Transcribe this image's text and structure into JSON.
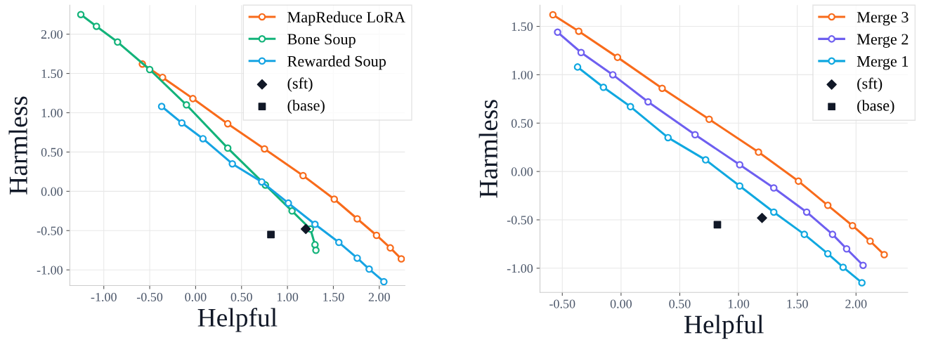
{
  "chart_data": [
    {
      "type": "line",
      "xlabel": "Helpful",
      "ylabel": "Harmless",
      "grid": true,
      "legend": "top right",
      "xlim": [
        -1.37,
        2.28
      ],
      "ylim": [
        -1.2,
        2.37
      ],
      "xticks": [
        {
          "value": -1,
          "label": "-1.00"
        },
        {
          "value": -0.5,
          "label": "-0.50"
        },
        {
          "value": 0,
          "label": "0.00"
        },
        {
          "value": 0.5,
          "label": "0.50"
        },
        {
          "value": 1,
          "label": "1.00"
        },
        {
          "value": 1.5,
          "label": "1.50"
        },
        {
          "value": 2,
          "label": "2.00"
        }
      ],
      "yticks": [
        {
          "value": -1,
          "label": "-1.00"
        },
        {
          "value": -0.5,
          "label": "-0.50"
        },
        {
          "value": 0,
          "label": "0.00"
        },
        {
          "value": 0.5,
          "label": "0.50"
        },
        {
          "value": 1,
          "label": "1.00"
        },
        {
          "value": 1.5,
          "label": "1.50"
        },
        {
          "value": 2,
          "label": "2.00"
        }
      ],
      "series": [
        {
          "name": "MapReduce LoRA",
          "marker": "circle",
          "color": "#f86b1b",
          "x": [
            -0.58,
            -0.36,
            -0.03,
            0.35,
            0.75,
            1.17,
            1.51,
            1.76,
            1.97,
            2.12,
            2.24
          ],
          "values": [
            1.62,
            1.45,
            1.18,
            0.86,
            0.54,
            0.2,
            -0.1,
            -0.35,
            -0.56,
            -0.72,
            -0.86
          ]
        },
        {
          "name": "Bone Soup",
          "marker": "circle",
          "color": "#13b37a",
          "x": [
            -1.25,
            -1.08,
            -0.85,
            -0.5,
            -0.1,
            0.35,
            0.76,
            1.05,
            1.25,
            1.3,
            1.31
          ],
          "values": [
            2.25,
            2.1,
            1.9,
            1.55,
            1.1,
            0.55,
            0.08,
            -0.25,
            -0.48,
            -0.68,
            -0.75
          ]
        },
        {
          "name": "Rewarded Soup",
          "marker": "circle",
          "color": "#16a4e3",
          "x": [
            -0.37,
            -0.15,
            0.08,
            0.4,
            0.72,
            1.01,
            1.3,
            1.56,
            1.76,
            1.89,
            2.05
          ],
          "values": [
            1.08,
            0.87,
            0.67,
            0.35,
            0.12,
            -0.15,
            -0.42,
            -0.65,
            -0.85,
            -0.99,
            -1.15
          ]
        },
        {
          "name": "(sft)",
          "type": "scatter",
          "marker": "diamond",
          "color": "#111827",
          "x": [
            1.2
          ],
          "values": [
            -0.48
          ]
        },
        {
          "name": "(base)",
          "type": "scatter",
          "marker": "square",
          "color": "#111827",
          "x": [
            0.82
          ],
          "values": [
            -0.55
          ]
        }
      ]
    },
    {
      "type": "line",
      "xlabel": "Helpful",
      "ylabel": "Harmless",
      "grid": true,
      "legend": "top right",
      "xlim": [
        -0.69,
        2.44
      ],
      "ylim": [
        -1.25,
        1.72
      ],
      "xticks": [
        {
          "value": -0.5,
          "label": "-0.50"
        },
        {
          "value": 0,
          "label": "0.00"
        },
        {
          "value": 0.5,
          "label": "0.50"
        },
        {
          "value": 1,
          "label": "1.00"
        },
        {
          "value": 1.5,
          "label": "1.50"
        },
        {
          "value": 2,
          "label": "2.00"
        }
      ],
      "yticks": [
        {
          "value": -1,
          "label": "-1.00"
        },
        {
          "value": -0.5,
          "label": "-0.50"
        },
        {
          "value": 0,
          "label": "0.00"
        },
        {
          "value": 0.5,
          "label": "0.50"
        },
        {
          "value": 1,
          "label": "1.00"
        },
        {
          "value": 1.5,
          "label": "1.50"
        }
      ],
      "series": [
        {
          "name": "Merge 3",
          "marker": "circle",
          "color": "#f86b1b",
          "x": [
            -0.58,
            -0.36,
            -0.03,
            0.35,
            0.75,
            1.17,
            1.51,
            1.76,
            1.97,
            2.12,
            2.24
          ],
          "values": [
            1.62,
            1.45,
            1.18,
            0.86,
            0.54,
            0.2,
            -0.1,
            -0.35,
            -0.56,
            -0.72,
            -0.86
          ]
        },
        {
          "name": "Merge 2",
          "marker": "circle",
          "color": "#6e5ff0",
          "x": [
            -0.54,
            -0.34,
            -0.07,
            0.23,
            0.63,
            1.01,
            1.3,
            1.58,
            1.8,
            1.92,
            2.06
          ],
          "values": [
            1.44,
            1.23,
            1.0,
            0.72,
            0.38,
            0.07,
            -0.17,
            -0.42,
            -0.65,
            -0.8,
            -0.97
          ]
        },
        {
          "name": "Merge 1",
          "marker": "circle",
          "color": "#10a8e0",
          "x": [
            -0.37,
            -0.15,
            0.08,
            0.4,
            0.72,
            1.01,
            1.3,
            1.56,
            1.76,
            1.89,
            2.05
          ],
          "values": [
            1.08,
            0.87,
            0.67,
            0.35,
            0.12,
            -0.15,
            -0.42,
            -0.65,
            -0.85,
            -0.99,
            -1.15
          ]
        },
        {
          "name": "(sft)",
          "type": "scatter",
          "marker": "diamond",
          "color": "#111827",
          "x": [
            1.2
          ],
          "values": [
            -0.48
          ]
        },
        {
          "name": "(base)",
          "type": "scatter",
          "marker": "square",
          "color": "#111827",
          "x": [
            0.82
          ],
          "values": [
            -0.55
          ]
        }
      ]
    }
  ]
}
